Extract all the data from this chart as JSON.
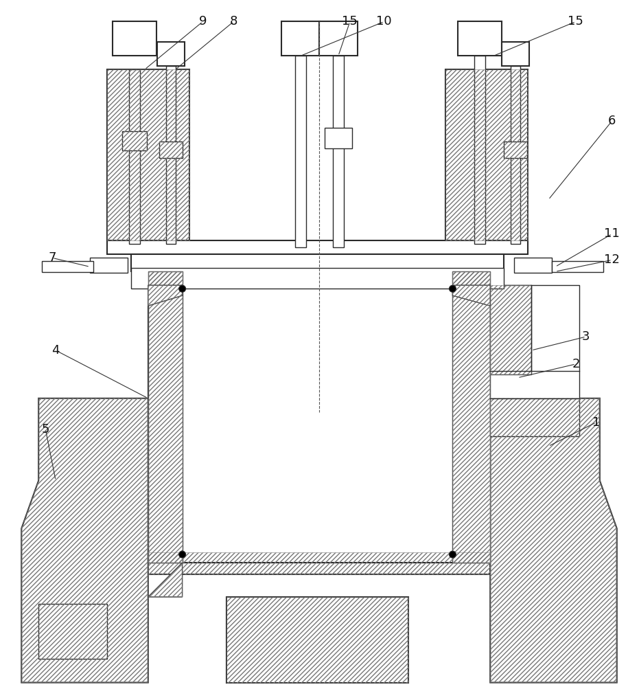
{
  "bg_color": "#ffffff",
  "lc": "#2a2a2a",
  "hc": "#777777",
  "fig_width": 9.31,
  "fig_height": 10.0,
  "lw": 1.0,
  "lw2": 1.5,
  "hatch": "/////"
}
